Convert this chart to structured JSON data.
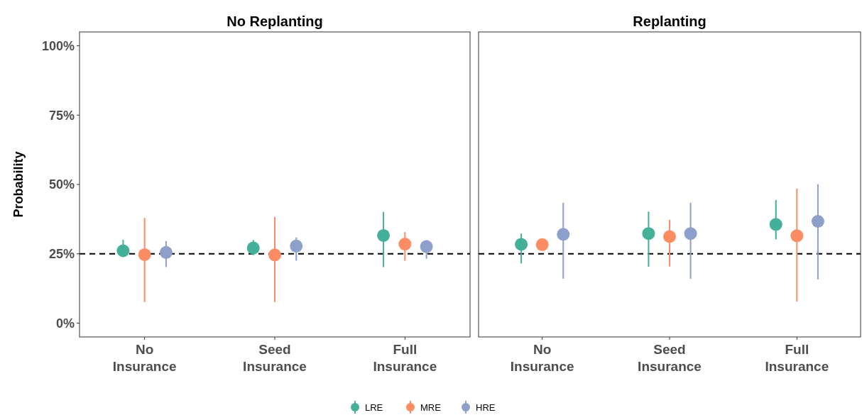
{
  "chart_data": [
    {
      "type": "scatter",
      "title": "No Replanting",
      "ylabel": "Probability",
      "categories": [
        "No Insurance",
        "Seed Insurance",
        "Full Insurance"
      ],
      "ylim": [
        -5,
        105
      ],
      "yticks": [
        {
          "value": 0,
          "label": "0%"
        },
        {
          "value": 25,
          "label": "25%"
        },
        {
          "value": 50,
          "label": "50%"
        },
        {
          "value": 75,
          "label": "75%"
        },
        {
          "value": 100,
          "label": "100%"
        }
      ],
      "marker": "circle",
      "legend": "bottom",
      "ref_lines": [
        {
          "axis": "y",
          "value": 25,
          "line_style": "dashed",
          "color": "#000000"
        }
      ],
      "series": [
        {
          "name": "LRE",
          "color": "#44b09a",
          "values": [
            26.1,
            27.1,
            31.6
          ],
          "errors": [
            [
              24,
              30
            ],
            [
              24.5,
              30
            ],
            [
              20.2,
              40.1
            ]
          ]
        },
        {
          "name": "MRE",
          "color": "#fc8d62",
          "values": [
            24.7,
            24.6,
            28.5
          ],
          "errors": [
            [
              7.6,
              37.9
            ],
            [
              7.6,
              38.3
            ],
            [
              22.5,
              32.8
            ]
          ]
        },
        {
          "name": "HRE",
          "color": "#8da0cb",
          "values": [
            25.5,
            27.8,
            27.6
          ],
          "errors": [
            [
              20.2,
              29.6
            ],
            [
              22.5,
              30.9
            ],
            [
              23.2,
              29.9
            ]
          ]
        }
      ]
    },
    {
      "type": "scatter",
      "title": "Replanting",
      "categories": [
        "No Insurance",
        "Seed Insurance",
        "Full Insurance"
      ],
      "ylim": [
        -5,
        105
      ],
      "tick_labels": "x",
      "marker": "circle",
      "ref_lines": [
        {
          "axis": "y",
          "value": 25,
          "line_style": "dashed",
          "color": "#000000"
        }
      ],
      "series": [
        {
          "color": "#44b09a",
          "values": [
            28.4,
            32.3,
            35.6
          ],
          "errors": [
            [
              21.5,
              32.3
            ],
            [
              20.3,
              40.2
            ],
            [
              30.2,
              44.4
            ]
          ]
        },
        {
          "color": "#fc8d62",
          "values": [
            28.3,
            31.2,
            31.5
          ],
          "errors": [
            null,
            [
              20.4,
              37.3
            ],
            [
              7.8,
              48.5
            ]
          ]
        },
        {
          "color": "#8da0cb",
          "values": [
            32,
            32.3,
            36.7
          ],
          "errors": [
            [
              16,
              43.4
            ],
            [
              16,
              43.4
            ],
            [
              15.8,
              50.1
            ]
          ]
        }
      ]
    }
  ]
}
